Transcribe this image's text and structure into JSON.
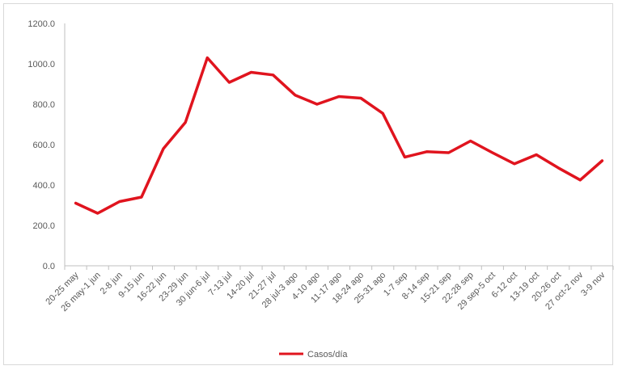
{
  "chart_data": {
    "type": "line",
    "categories": [
      "20-25 may",
      "26 may-1 jun",
      "2-8 jun",
      "9-15 jun",
      "16-22 jun",
      "23-29 jun",
      "30 jun-6 jul",
      "7-13 jul",
      "14-20 jul",
      "21-27 jul",
      "28 jul-3 ago",
      "4-10 ago",
      "11-17 ago",
      "18-24 ago",
      "25-31 ago",
      "1-7 sep",
      "8-14 sep",
      "15-21 sep",
      "22-28 sep",
      "29 sep-5 oct",
      "6-12 oct",
      "13-19 oct",
      "20-26 oct",
      "27 oct-2 nov",
      "3-9 nov"
    ],
    "series": [
      {
        "name": "Casos/día",
        "color": "#e0141e",
        "values": [
          310,
          260,
          318,
          340,
          580,
          710,
          1030,
          908,
          958,
          945,
          845,
          800,
          838,
          830,
          755,
          538,
          565,
          560,
          618,
          560,
          505,
          550,
          485,
          425,
          520
        ]
      }
    ],
    "yticks": [
      "0.0",
      "200.0",
      "400.0",
      "600.0",
      "800.0",
      "1000.0",
      "1200.0"
    ],
    "ylim": [
      0,
      1200
    ],
    "grid": false,
    "legend_position": "bottom-center",
    "title": "",
    "xlabel": "",
    "ylabel": ""
  }
}
